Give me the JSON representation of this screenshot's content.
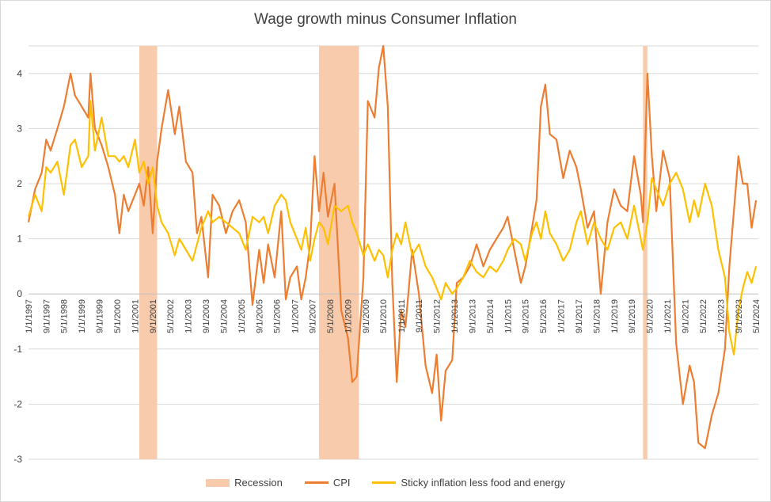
{
  "chart_data": {
    "type": "line",
    "title": "Wage growth minus Consumer  Inflation",
    "xlabel": "",
    "ylabel": "",
    "ylim": [
      -3,
      4.5
    ],
    "yticks": [
      -3,
      -2,
      -1,
      0,
      1,
      2,
      3,
      4
    ],
    "xlim": [
      "1997-01-01",
      "2024-06-01"
    ],
    "xtick_labels": [
      "1/1/1997",
      "9/1/1997",
      "5/1/1998",
      "1/1/1999",
      "9/1/1999",
      "5/1/2000",
      "1/1/2001",
      "9/1/2001",
      "5/1/2002",
      "1/1/2003",
      "9/1/2003",
      "5/1/2004",
      "1/1/2005",
      "9/1/2005",
      "5/1/2006",
      "1/1/2007",
      "9/1/2007",
      "5/1/2008",
      "1/1/2009",
      "9/1/2009",
      "5/1/2010",
      "1/1/2011",
      "9/1/2011",
      "5/1/2012",
      "1/1/2013",
      "9/1/2013",
      "5/1/2014",
      "1/1/2015",
      "9/1/2015",
      "5/1/2016",
      "1/1/2017",
      "9/1/2017",
      "5/1/2018",
      "1/1/2019",
      "9/1/2019",
      "5/1/2020",
      "1/1/2021",
      "9/1/2021",
      "5/1/2022",
      "1/1/2023",
      "9/1/2023",
      "5/1/2024"
    ],
    "grid": true,
    "legend_position": "bottom",
    "recessions": [
      {
        "start": "2001-03-01",
        "end": "2001-11-01"
      },
      {
        "start": "2007-12-01",
        "end": "2009-06-01"
      },
      {
        "start": "2020-02-01",
        "end": "2020-04-01"
      }
    ],
    "series": [
      {
        "name": "CPI",
        "color": "#ed7d31",
        "points": [
          [
            "1997-01-01",
            1.3
          ],
          [
            "1997-04-01",
            1.9
          ],
          [
            "1997-07-01",
            2.2
          ],
          [
            "1997-09-01",
            2.8
          ],
          [
            "1997-11-01",
            2.6
          ],
          [
            "1998-02-01",
            3.0
          ],
          [
            "1998-05-01",
            3.4
          ],
          [
            "1998-08-01",
            4.0
          ],
          [
            "1998-10-01",
            3.6
          ],
          [
            "1999-01-01",
            3.4
          ],
          [
            "1999-04-01",
            3.2
          ],
          [
            "1999-05-01",
            4.0
          ],
          [
            "1999-07-01",
            3.0
          ],
          [
            "1999-10-01",
            2.7
          ],
          [
            "2000-01-01",
            2.3
          ],
          [
            "2000-04-01",
            1.8
          ],
          [
            "2000-06-01",
            1.1
          ],
          [
            "2000-08-01",
            1.8
          ],
          [
            "2000-10-01",
            1.5
          ],
          [
            "2001-01-01",
            1.8
          ],
          [
            "2001-03-01",
            2.0
          ],
          [
            "2001-05-01",
            1.6
          ],
          [
            "2001-07-01",
            2.3
          ],
          [
            "2001-09-01",
            1.1
          ],
          [
            "2001-11-01",
            2.4
          ],
          [
            "2002-01-01",
            3.0
          ],
          [
            "2002-04-01",
            3.7
          ],
          [
            "2002-07-01",
            2.9
          ],
          [
            "2002-09-01",
            3.4
          ],
          [
            "2002-12-01",
            2.4
          ],
          [
            "2003-03-01",
            2.2
          ],
          [
            "2003-05-01",
            1.1
          ],
          [
            "2003-07-01",
            1.4
          ],
          [
            "2003-10-01",
            0.3
          ],
          [
            "2003-12-01",
            1.8
          ],
          [
            "2004-03-01",
            1.6
          ],
          [
            "2004-06-01",
            1.1
          ],
          [
            "2004-09-01",
            1.5
          ],
          [
            "2004-12-01",
            1.7
          ],
          [
            "2005-03-01",
            1.3
          ],
          [
            "2005-06-01",
            -0.2
          ],
          [
            "2005-09-01",
            0.8
          ],
          [
            "2005-11-01",
            0.2
          ],
          [
            "2006-01-01",
            0.9
          ],
          [
            "2006-04-01",
            0.3
          ],
          [
            "2006-07-01",
            1.5
          ],
          [
            "2006-09-01",
            -0.1
          ],
          [
            "2006-11-01",
            0.3
          ],
          [
            "2007-02-01",
            0.5
          ],
          [
            "2007-04-01",
            -0.1
          ],
          [
            "2007-06-01",
            0.3
          ],
          [
            "2007-08-01",
            0.9
          ],
          [
            "2007-10-01",
            2.5
          ],
          [
            "2007-12-01",
            1.5
          ],
          [
            "2008-02-01",
            2.2
          ],
          [
            "2008-04-01",
            1.4
          ],
          [
            "2008-07-01",
            2.0
          ],
          [
            "2008-10-01",
            -0.3
          ],
          [
            "2009-01-01",
            -0.8
          ],
          [
            "2009-03-01",
            -1.6
          ],
          [
            "2009-05-01",
            -1.5
          ],
          [
            "2009-08-01",
            0.3
          ],
          [
            "2009-10-01",
            3.5
          ],
          [
            "2010-01-01",
            3.2
          ],
          [
            "2010-03-01",
            4.1
          ],
          [
            "2010-05-01",
            4.5
          ],
          [
            "2010-07-01",
            3.4
          ],
          [
            "2010-09-01",
            0.2
          ],
          [
            "2010-11-01",
            -1.6
          ],
          [
            "2011-01-01",
            -0.3
          ],
          [
            "2011-03-01",
            -0.6
          ],
          [
            "2011-06-01",
            0.8
          ],
          [
            "2011-09-01",
            0.0
          ],
          [
            "2011-12-01",
            -1.3
          ],
          [
            "2012-03-01",
            -1.8
          ],
          [
            "2012-05-01",
            -1.1
          ],
          [
            "2012-07-01",
            -2.3
          ],
          [
            "2012-09-01",
            -1.4
          ],
          [
            "2012-12-01",
            -1.2
          ],
          [
            "2013-02-01",
            0.2
          ],
          [
            "2013-05-01",
            0.3
          ],
          [
            "2013-08-01",
            0.5
          ],
          [
            "2013-11-01",
            0.9
          ],
          [
            "2014-02-01",
            0.5
          ],
          [
            "2014-05-01",
            0.8
          ],
          [
            "2014-08-01",
            1.0
          ],
          [
            "2014-11-01",
            1.2
          ],
          [
            "2015-01-01",
            1.4
          ],
          [
            "2015-04-01",
            0.8
          ],
          [
            "2015-07-01",
            0.2
          ],
          [
            "2015-09-01",
            0.5
          ],
          [
            "2015-12-01",
            1.2
          ],
          [
            "2016-02-01",
            1.7
          ],
          [
            "2016-04-01",
            3.4
          ],
          [
            "2016-06-01",
            3.8
          ],
          [
            "2016-08-01",
            2.9
          ],
          [
            "2016-11-01",
            2.8
          ],
          [
            "2017-02-01",
            2.1
          ],
          [
            "2017-05-01",
            2.6
          ],
          [
            "2017-08-01",
            2.3
          ],
          [
            "2017-10-01",
            1.9
          ],
          [
            "2018-01-01",
            1.2
          ],
          [
            "2018-04-01",
            1.5
          ],
          [
            "2018-07-01",
            0.0
          ],
          [
            "2018-10-01",
            1.3
          ],
          [
            "2019-01-01",
            1.9
          ],
          [
            "2019-04-01",
            1.6
          ],
          [
            "2019-07-01",
            1.5
          ],
          [
            "2019-10-01",
            2.5
          ],
          [
            "2020-01-01",
            1.8
          ],
          [
            "2020-02-01",
            1.3
          ],
          [
            "2020-04-01",
            4.0
          ],
          [
            "2020-06-01",
            2.5
          ],
          [
            "2020-08-01",
            1.5
          ],
          [
            "2020-11-01",
            2.6
          ],
          [
            "2021-02-01",
            2.1
          ],
          [
            "2021-05-01",
            -0.9
          ],
          [
            "2021-08-01",
            -2.0
          ],
          [
            "2021-11-01",
            -1.3
          ],
          [
            "2022-01-01",
            -1.6
          ],
          [
            "2022-03-01",
            -2.7
          ],
          [
            "2022-06-01",
            -2.8
          ],
          [
            "2022-09-01",
            -2.2
          ],
          [
            "2022-12-01",
            -1.8
          ],
          [
            "2023-03-01",
            -1.0
          ],
          [
            "2023-05-01",
            0.5
          ],
          [
            "2023-07-01",
            1.5
          ],
          [
            "2023-09-01",
            2.5
          ],
          [
            "2023-11-01",
            2.0
          ],
          [
            "2024-01-01",
            2.0
          ],
          [
            "2024-03-01",
            1.2
          ],
          [
            "2024-05-01",
            1.7
          ]
        ]
      },
      {
        "name": "Sticky inflation less food and energy",
        "color": "#ffc000",
        "points": [
          [
            "1997-01-01",
            1.4
          ],
          [
            "1997-04-01",
            1.8
          ],
          [
            "1997-07-01",
            1.5
          ],
          [
            "1997-09-01",
            2.3
          ],
          [
            "1997-11-01",
            2.2
          ],
          [
            "1998-02-01",
            2.4
          ],
          [
            "1998-05-01",
            1.8
          ],
          [
            "1998-08-01",
            2.7
          ],
          [
            "1998-10-01",
            2.8
          ],
          [
            "1999-01-01",
            2.3
          ],
          [
            "1999-04-01",
            2.5
          ],
          [
            "1999-05-01",
            3.5
          ],
          [
            "1999-07-01",
            2.6
          ],
          [
            "1999-10-01",
            3.2
          ],
          [
            "2000-01-01",
            2.5
          ],
          [
            "2000-04-01",
            2.5
          ],
          [
            "2000-06-01",
            2.4
          ],
          [
            "2000-08-01",
            2.5
          ],
          [
            "2000-10-01",
            2.3
          ],
          [
            "2001-01-01",
            2.8
          ],
          [
            "2001-03-01",
            2.2
          ],
          [
            "2001-05-01",
            2.4
          ],
          [
            "2001-07-01",
            2.0
          ],
          [
            "2001-09-01",
            2.3
          ],
          [
            "2001-11-01",
            1.6
          ],
          [
            "2002-01-01",
            1.3
          ],
          [
            "2002-04-01",
            1.1
          ],
          [
            "2002-07-01",
            0.7
          ],
          [
            "2002-09-01",
            1.0
          ],
          [
            "2002-12-01",
            0.8
          ],
          [
            "2003-03-01",
            0.6
          ],
          [
            "2003-05-01",
            0.9
          ],
          [
            "2003-07-01",
            1.2
          ],
          [
            "2003-10-01",
            1.5
          ],
          [
            "2003-12-01",
            1.3
          ],
          [
            "2004-03-01",
            1.4
          ],
          [
            "2004-06-01",
            1.3
          ],
          [
            "2004-09-01",
            1.2
          ],
          [
            "2004-12-01",
            1.1
          ],
          [
            "2005-03-01",
            0.8
          ],
          [
            "2005-06-01",
            1.4
          ],
          [
            "2005-09-01",
            1.3
          ],
          [
            "2005-11-01",
            1.4
          ],
          [
            "2006-01-01",
            1.1
          ],
          [
            "2006-04-01",
            1.6
          ],
          [
            "2006-07-01",
            1.8
          ],
          [
            "2006-09-01",
            1.7
          ],
          [
            "2006-11-01",
            1.3
          ],
          [
            "2007-02-01",
            1.0
          ],
          [
            "2007-04-01",
            0.8
          ],
          [
            "2007-06-01",
            1.2
          ],
          [
            "2007-08-01",
            0.6
          ],
          [
            "2007-10-01",
            1.0
          ],
          [
            "2007-12-01",
            1.3
          ],
          [
            "2008-02-01",
            1.2
          ],
          [
            "2008-04-01",
            0.9
          ],
          [
            "2008-07-01",
            1.6
          ],
          [
            "2008-10-01",
            1.5
          ],
          [
            "2009-01-01",
            1.6
          ],
          [
            "2009-03-01",
            1.3
          ],
          [
            "2009-05-01",
            1.1
          ],
          [
            "2009-08-01",
            0.7
          ],
          [
            "2009-10-01",
            0.9
          ],
          [
            "2010-01-01",
            0.6
          ],
          [
            "2010-03-01",
            0.8
          ],
          [
            "2010-05-01",
            0.7
          ],
          [
            "2010-07-01",
            0.3
          ],
          [
            "2010-09-01",
            0.8
          ],
          [
            "2010-11-01",
            1.1
          ],
          [
            "2011-01-01",
            0.9
          ],
          [
            "2011-03-01",
            1.3
          ],
          [
            "2011-06-01",
            0.7
          ],
          [
            "2011-09-01",
            0.9
          ],
          [
            "2011-12-01",
            0.5
          ],
          [
            "2012-03-01",
            0.3
          ],
          [
            "2012-05-01",
            0.1
          ],
          [
            "2012-07-01",
            -0.1
          ],
          [
            "2012-09-01",
            0.2
          ],
          [
            "2012-12-01",
            0.0
          ],
          [
            "2013-02-01",
            0.1
          ],
          [
            "2013-05-01",
            0.3
          ],
          [
            "2013-08-01",
            0.6
          ],
          [
            "2013-11-01",
            0.4
          ],
          [
            "2014-02-01",
            0.3
          ],
          [
            "2014-05-01",
            0.5
          ],
          [
            "2014-08-01",
            0.4
          ],
          [
            "2014-11-01",
            0.6
          ],
          [
            "2015-01-01",
            0.8
          ],
          [
            "2015-04-01",
            1.0
          ],
          [
            "2015-07-01",
            0.9
          ],
          [
            "2015-09-01",
            0.6
          ],
          [
            "2015-12-01",
            1.1
          ],
          [
            "2016-02-01",
            1.3
          ],
          [
            "2016-04-01",
            1.0
          ],
          [
            "2016-06-01",
            1.5
          ],
          [
            "2016-08-01",
            1.1
          ],
          [
            "2016-11-01",
            0.9
          ],
          [
            "2017-02-01",
            0.6
          ],
          [
            "2017-05-01",
            0.8
          ],
          [
            "2017-08-01",
            1.3
          ],
          [
            "2017-10-01",
            1.5
          ],
          [
            "2018-01-01",
            0.9
          ],
          [
            "2018-04-01",
            1.3
          ],
          [
            "2018-07-01",
            1.0
          ],
          [
            "2018-10-01",
            0.8
          ],
          [
            "2019-01-01",
            1.2
          ],
          [
            "2019-04-01",
            1.3
          ],
          [
            "2019-07-01",
            1.0
          ],
          [
            "2019-10-01",
            1.6
          ],
          [
            "2020-01-01",
            1.0
          ],
          [
            "2020-02-01",
            0.8
          ],
          [
            "2020-04-01",
            1.3
          ],
          [
            "2020-06-01",
            2.1
          ],
          [
            "2020-08-01",
            1.9
          ],
          [
            "2020-11-01",
            1.6
          ],
          [
            "2021-02-01",
            2.0
          ],
          [
            "2021-05-01",
            2.2
          ],
          [
            "2021-08-01",
            1.9
          ],
          [
            "2021-11-01",
            1.3
          ],
          [
            "2022-01-01",
            1.7
          ],
          [
            "2022-03-01",
            1.4
          ],
          [
            "2022-06-01",
            2.0
          ],
          [
            "2022-09-01",
            1.6
          ],
          [
            "2022-12-01",
            0.8
          ],
          [
            "2023-03-01",
            0.3
          ],
          [
            "2023-05-01",
            -0.7
          ],
          [
            "2023-07-01",
            -1.1
          ],
          [
            "2023-09-01",
            -0.3
          ],
          [
            "2023-11-01",
            0.1
          ],
          [
            "2024-01-01",
            0.4
          ],
          [
            "2024-03-01",
            0.2
          ],
          [
            "2024-05-01",
            0.5
          ]
        ]
      }
    ],
    "legend": [
      "Recession",
      "CPI",
      "Sticky inflation less food and energy"
    ]
  }
}
